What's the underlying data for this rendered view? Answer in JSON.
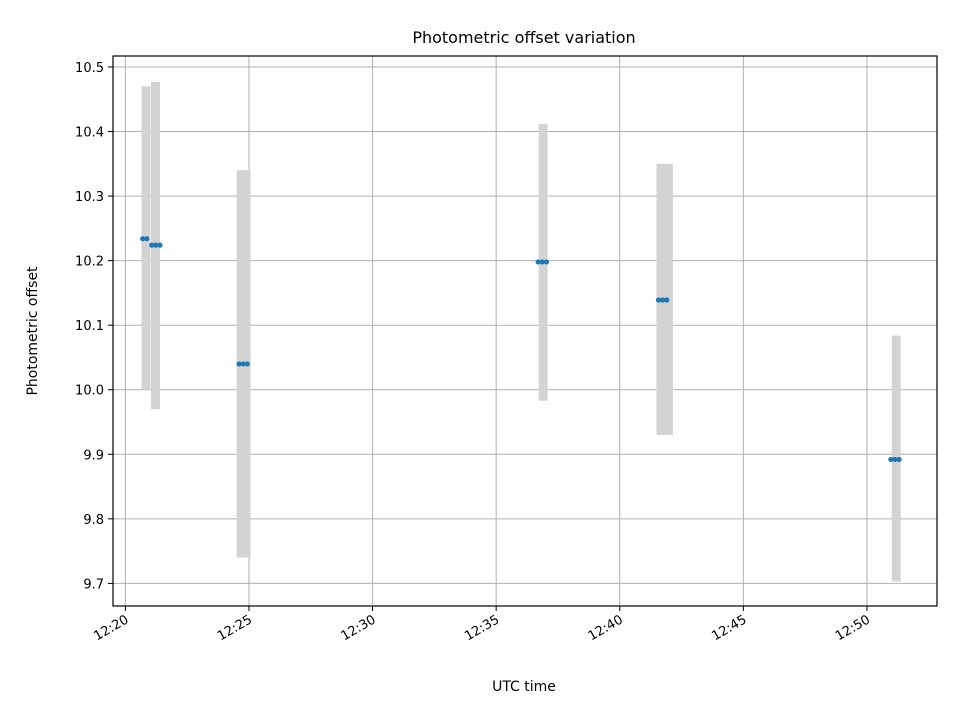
{
  "chart_data": {
    "type": "scatter",
    "title": "Photometric offset variation",
    "xlabel": "UTC time",
    "ylabel": "Photometric offset",
    "x_axis_kind": "time",
    "xlim": [
      "12:19:30",
      "12:52:50"
    ],
    "ylim": [
      9.665,
      10.517
    ],
    "x_ticks": [
      "12:20",
      "12:25",
      "12:30",
      "12:35",
      "12:40",
      "12:45",
      "12:50"
    ],
    "y_ticks": [
      "9.7",
      "9.8",
      "9.9",
      "10.0",
      "10.1",
      "10.2",
      "10.3",
      "10.4",
      "10.5"
    ],
    "grid": true,
    "colors": {
      "points": "#1f77b4",
      "error_bars": "#d3d3d3",
      "grid": "#b0b0b0"
    },
    "error_bars": [
      {
        "x": "12:20:50",
        "low": 10.0,
        "high": 10.47
      },
      {
        "x": "12:21:13",
        "low": 9.97,
        "high": 10.477
      },
      {
        "x": "12:24:41",
        "low": 9.74,
        "high": 10.34
      },
      {
        "x": "12:24:53",
        "low": 9.74,
        "high": 10.34
      },
      {
        "x": "12:36:54",
        "low": 9.983,
        "high": 10.412
      },
      {
        "x": "12:41:40",
        "low": 9.93,
        "high": 10.35
      },
      {
        "x": "12:41:58",
        "low": 9.93,
        "high": 10.35
      },
      {
        "x": "12:51:11",
        "low": 9.703,
        "high": 10.084
      }
    ],
    "points": [
      {
        "x": "12:20:42",
        "y": 10.234
      },
      {
        "x": "12:20:52",
        "y": 10.234
      },
      {
        "x": "12:21:04",
        "y": 10.224
      },
      {
        "x": "12:21:14",
        "y": 10.224
      },
      {
        "x": "12:21:24",
        "y": 10.224
      },
      {
        "x": "12:24:36",
        "y": 10.04
      },
      {
        "x": "12:24:46",
        "y": 10.04
      },
      {
        "x": "12:24:56",
        "y": 10.04
      },
      {
        "x": "12:36:42",
        "y": 10.198
      },
      {
        "x": "12:36:52",
        "y": 10.198
      },
      {
        "x": "12:37:02",
        "y": 10.198
      },
      {
        "x": "12:41:34",
        "y": 10.139
      },
      {
        "x": "12:41:44",
        "y": 10.139
      },
      {
        "x": "12:41:54",
        "y": 10.139
      },
      {
        "x": "12:50:58",
        "y": 9.892
      },
      {
        "x": "12:51:08",
        "y": 9.892
      },
      {
        "x": "12:51:18",
        "y": 9.892
      }
    ]
  }
}
